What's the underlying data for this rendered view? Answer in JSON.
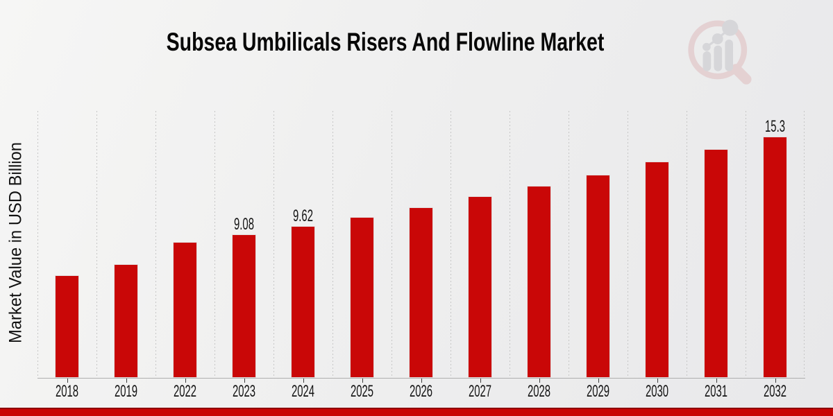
{
  "header": {
    "title": "Subsea Umbilicals Risers And Flowline Market"
  },
  "chart_data": {
    "type": "bar",
    "title": "Subsea Umbilicals Risers And Flowline Market",
    "xlabel": "",
    "ylabel": "Market Value in USD Billion",
    "categories": [
      "2018",
      "2019",
      "2022",
      "2023",
      "2024",
      "2025",
      "2026",
      "2027",
      "2028",
      "2029",
      "2030",
      "2031",
      "2032"
    ],
    "values": [
      6.5,
      7.2,
      8.6,
      9.08,
      9.62,
      10.2,
      10.8,
      11.5,
      12.2,
      12.9,
      13.7,
      14.5,
      15.3
    ],
    "data_labels": {
      "2023": "9.08",
      "2024": "9.62",
      "2032": "15.3"
    },
    "ylim": [
      0,
      16.9
    ],
    "grid": "vertical-dashed",
    "legend": "none",
    "bar_color": "#c90707"
  },
  "branding": {
    "watermark_icon": "magnifier-bar-chart-logo",
    "accent_band_color": "#c90404",
    "watermark_pink": "#dfb8ba",
    "watermark_gray": "#c6c6ca"
  }
}
